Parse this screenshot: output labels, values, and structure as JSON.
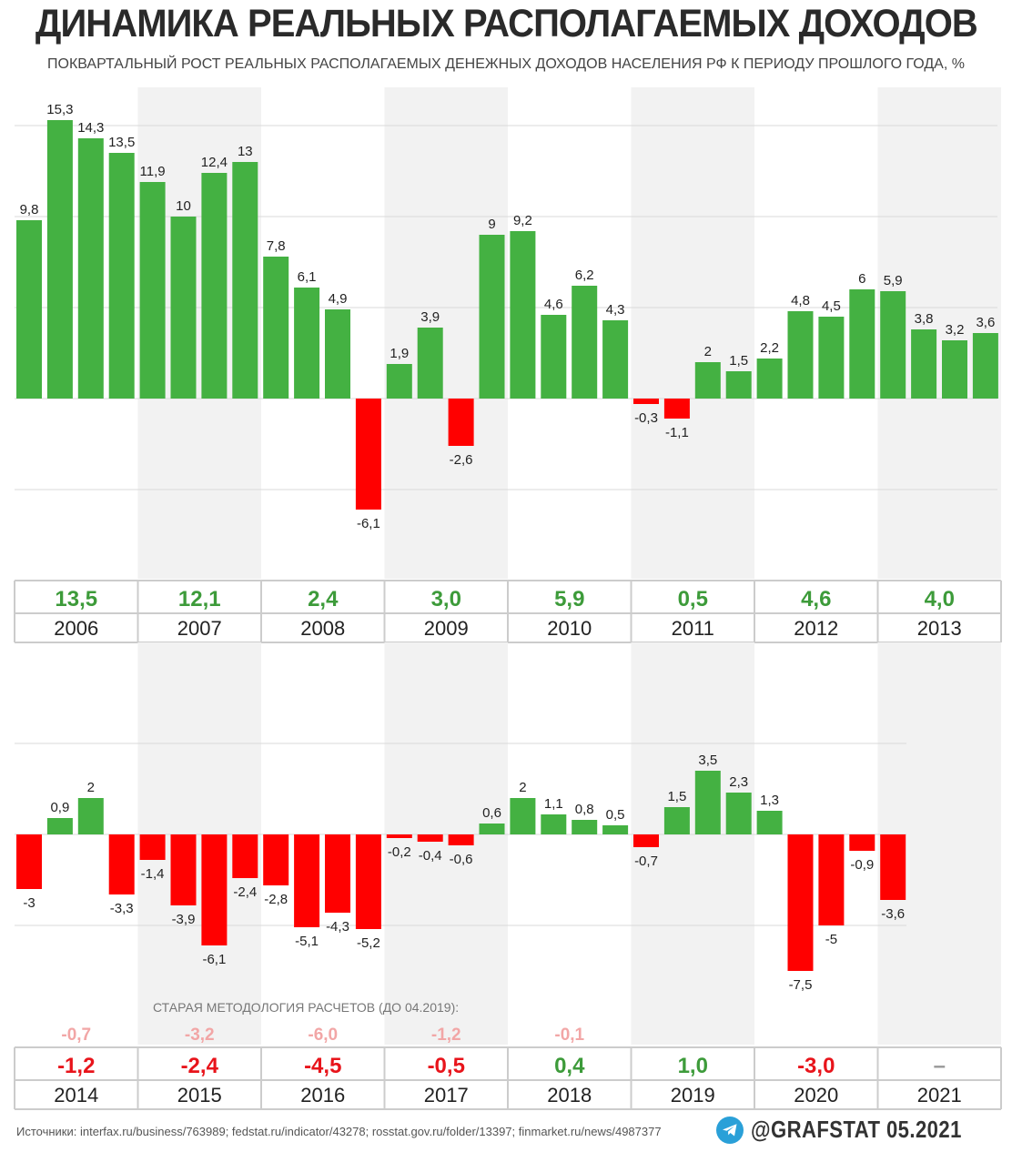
{
  "title": "ДИНАМИКА РЕАЛЬНЫХ РАСПОЛАГАЕМЫХ ДОХОДОВ",
  "subtitle": "ПОКВАРТАЛЬНЫЙ РОСТ РЕАЛЬНЫХ РАСПОЛАГАЕМЫХ ДЕНЕЖНЫХ ДОХОДОВ НАСЕЛЕНИЯ РФ К ПЕРИОДУ ПРОШЛОГО ГОДА, %",
  "old_method_label": "СТАРАЯ МЕТОДОЛОГИЯ РАСЧЕТОВ (ДО 04.2019):",
  "sources": "Источники: interfax.ru/business/763989; fedstat.ru/indicator/43278; rosstat.gov.ru/folder/13397; finmarket.ru/news/4987377",
  "brand": "@GRAFSTAT 05.2021",
  "icons": {
    "telegram": "telegram-icon"
  },
  "colors": {
    "positive": "#44b142",
    "negative": "#ff0000",
    "old_method": "#f2a6a6",
    "annual_positive": "#3d9b3a",
    "annual_negative": "#e8141b"
  },
  "chart_data": [
    {
      "type": "bar",
      "period": "2006–2013",
      "quarters_per_year": 4,
      "years": [
        "2006",
        "2007",
        "2008",
        "2009",
        "2010",
        "2011",
        "2012",
        "2013"
      ],
      "values": [
        9.8,
        15.3,
        14.3,
        13.5,
        11.9,
        10,
        12.4,
        13,
        7.8,
        6.1,
        4.9,
        -6.1,
        1.9,
        3.9,
        -2.6,
        9,
        9.2,
        4.6,
        6.2,
        4.3,
        -0.3,
        -1.1,
        2,
        1.5,
        2.2,
        4.8,
        4.5,
        6,
        5.9,
        3.8,
        3.2,
        3.6
      ],
      "value_labels": [
        "9,8",
        "15,3",
        "14,3",
        "13,5",
        "11,9",
        "10",
        "12,4",
        "13",
        "7,8",
        "6,1",
        "4,9",
        "-6,1",
        "1,9",
        "3,9",
        "-2,6",
        "9",
        "9,2",
        "4,6",
        "6,2",
        "4,3",
        "-0,3",
        "-1,1",
        "2",
        "1,5",
        "2,2",
        "4,8",
        "4,5",
        "6",
        "5,9",
        "3,8",
        "3,2",
        "3,6"
      ],
      "annual_labels": [
        "13,5",
        "12,1",
        "2,4",
        "3,0",
        "5,9",
        "0,5",
        "4,6",
        "4,0"
      ],
      "annual_values": [
        13.5,
        12.1,
        2.4,
        3.0,
        5.9,
        0.5,
        4.6,
        4.0
      ],
      "gridlines": [
        -5,
        0,
        5,
        10,
        15
      ],
      "grid": true
    },
    {
      "type": "bar",
      "period": "2014–2021",
      "quarters_per_year": 4,
      "years": [
        "2014",
        "2015",
        "2016",
        "2017",
        "2018",
        "2019",
        "2020",
        "2021"
      ],
      "values": [
        -3,
        0.9,
        2,
        -3.3,
        -1.4,
        -3.9,
        -6.1,
        -2.4,
        -2.8,
        -5.1,
        -4.3,
        -5.2,
        -0.2,
        -0.4,
        -0.6,
        0.6,
        2,
        1.1,
        0.8,
        0.5,
        -0.7,
        1.5,
        3.5,
        2.3,
        1.3,
        -7.5,
        -5,
        -0.9,
        -3.6
      ],
      "value_labels": [
        "-3",
        "0,9",
        "2",
        "-3,3",
        "-1,4",
        "-3,9",
        "-6,1",
        "-2,4",
        "-2,8",
        "-5,1",
        "-4,3",
        "-5,2",
        "-0,2",
        "-0,4",
        "-0,6",
        "0,6",
        "2",
        "1,1",
        "0,8",
        "0,5",
        "-0,7",
        "1,5",
        "3,5",
        "2,3",
        "1,3",
        "-7,5",
        "-5",
        "-0,9",
        "-3,6"
      ],
      "annual_labels": [
        "-1,2",
        "-2,4",
        "-4,5",
        "-0,5",
        "0,4",
        "1,0",
        "-3,0",
        "–"
      ],
      "annual_values": [
        -1.2,
        -2.4,
        -4.5,
        -0.5,
        0.4,
        1.0,
        -3.0,
        null
      ],
      "old_method_labels": [
        "-0,7",
        "-3,2",
        "-6,0",
        "-1,2",
        "-0,1",
        "",
        "",
        ""
      ],
      "old_method_values": [
        -0.7,
        -3.2,
        -6.0,
        -1.2,
        -0.1,
        null,
        null,
        null
      ],
      "gridlines": [
        -5,
        0,
        5
      ],
      "grid": true
    }
  ]
}
